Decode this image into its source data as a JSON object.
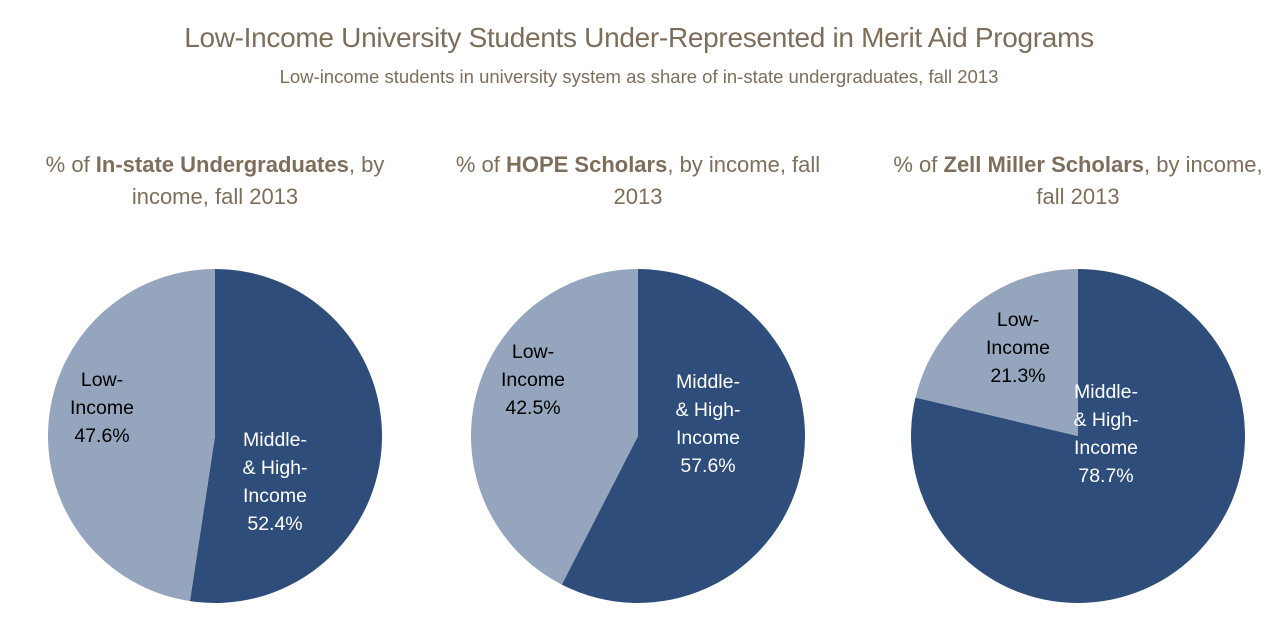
{
  "title": "Low-Income University Students Under-Represented in Merit Aid Programs",
  "subtitle": "Low-income students in university system as share of in-state undergraduates, fall 2013",
  "colors": {
    "low_income": "#94a5bd",
    "middle_high_income": "#2f4d7b",
    "title_text": "#7d6e5c"
  },
  "chart_data": [
    {
      "type": "pie",
      "title_prefix": "% of ",
      "title_bold": "In-state Undergraduates",
      "title_suffix": ", by income, fall 2013",
      "categories": [
        "Middle- & High-Income",
        "Low-Income"
      ],
      "values": [
        52.4,
        47.6
      ],
      "labels": [
        {
          "lines": [
            "Middle-",
            "& High-",
            "Income",
            "52.4%"
          ]
        },
        {
          "lines": [
            "Low-",
            "Income",
            "47.6%"
          ]
        }
      ]
    },
    {
      "type": "pie",
      "title_prefix": "% of ",
      "title_bold": "HOPE Scholars",
      "title_suffix": ", by income, fall 2013",
      "categories": [
        "Middle- & High-Income",
        "Low-Income"
      ],
      "values": [
        57.6,
        42.5
      ],
      "labels": [
        {
          "lines": [
            "Middle-",
            "& High-",
            "Income",
            "57.6%"
          ]
        },
        {
          "lines": [
            "Low-",
            "Income",
            "42.5%"
          ]
        }
      ]
    },
    {
      "type": "pie",
      "title_prefix": "% of ",
      "title_bold": "Zell Miller Scholars",
      "title_suffix": ", by income, fall 2013",
      "categories": [
        "Middle- & High-Income",
        "Low-Income"
      ],
      "values": [
        78.7,
        21.3
      ],
      "labels": [
        {
          "lines": [
            "Middle-",
            "& High-",
            "Income",
            "78.7%"
          ]
        },
        {
          "lines": [
            "Low-",
            "Income",
            "21.3%"
          ]
        }
      ]
    }
  ]
}
